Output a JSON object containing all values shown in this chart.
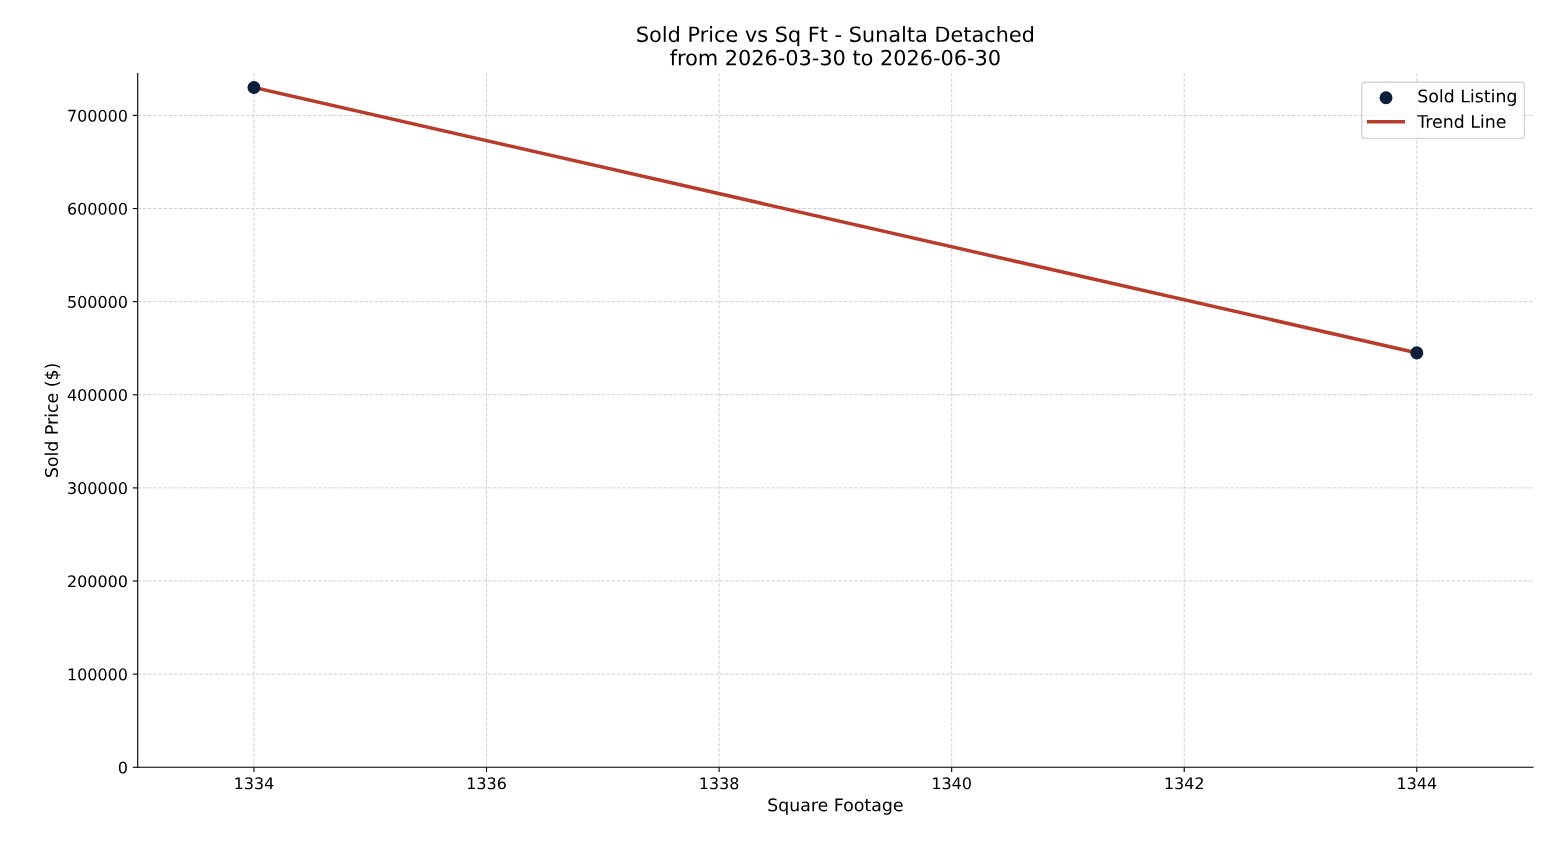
{
  "chart_data": {
    "type": "scatter",
    "title": "Sold Price vs Sq Ft - Sunalta Detached\nfrom 2026-03-30 to 2026-06-30",
    "xlabel": "Square Footage",
    "ylabel": "Sold Price ($)",
    "series": [
      {
        "name": "Sold Listing",
        "color": "#0b1f3a",
        "values": [
          730000,
          445000
        ],
        "marker": "circle"
      },
      {
        "name": "Trend Line",
        "type": "line",
        "color": "#b83c2b",
        "values": [
          730000,
          445000
        ],
        "marker": "none",
        "line_style": "solid"
      }
    ],
    "x": [
      1334,
      1344
    ],
    "xlim": [
      1333,
      1345
    ],
    "xticks": [
      1334,
      1336,
      1338,
      1340,
      1342,
      1344
    ],
    "ylim": [
      0,
      745000
    ],
    "yticks": [
      0,
      100000,
      200000,
      300000,
      400000,
      500000,
      600000,
      700000
    ],
    "grid": true,
    "legend": "top right"
  }
}
